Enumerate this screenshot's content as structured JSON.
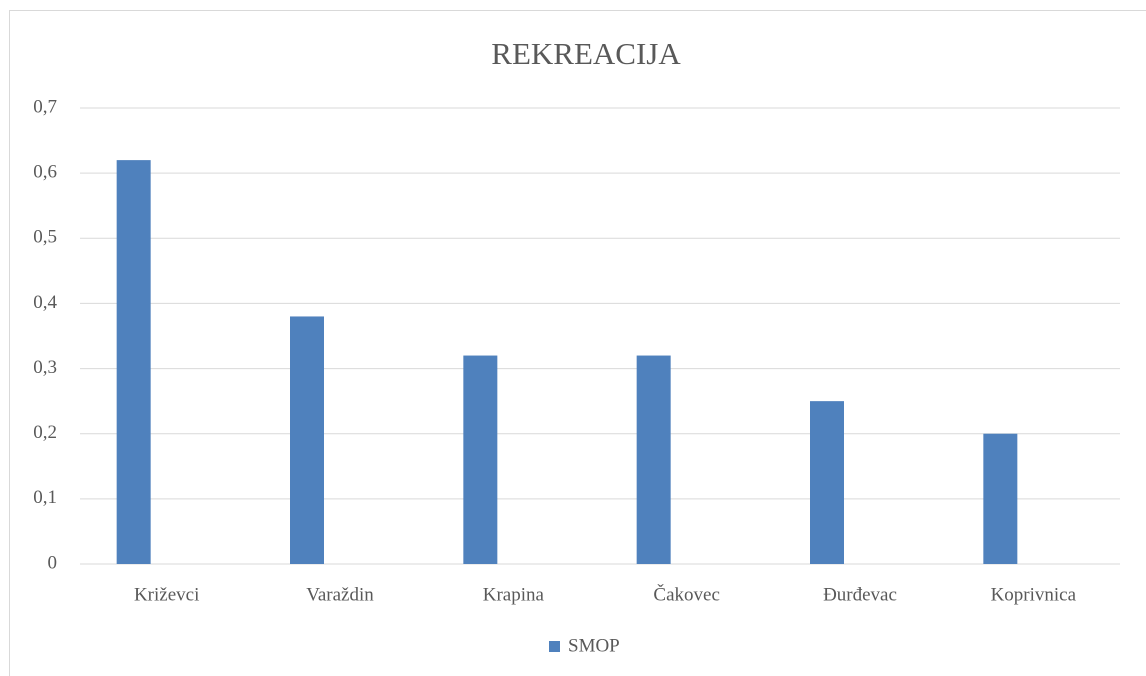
{
  "chart_data": {
    "type": "bar",
    "title": "REKREACIJA",
    "categories": [
      "Križevci",
      "Varaždin",
      "Krapina",
      "Čakovec",
      "Đurđevac",
      "Koprivnica"
    ],
    "series": [
      {
        "name": "SMOP",
        "color": "#4f81bd",
        "values": [
          0.62,
          0.38,
          0.32,
          0.32,
          0.25,
          0.2
        ]
      }
    ],
    "ylim": [
      0,
      0.7
    ],
    "yticks": [
      0,
      {
        "value": 0.1,
        "label": "0,1"
      },
      {
        "value": 0.2,
        "label": "0,2"
      },
      {
        "value": 0.3,
        "label": "0,3"
      },
      {
        "value": 0.4,
        "label": "0,4"
      },
      {
        "value": 0.5,
        "label": "0,5"
      },
      {
        "value": 0.6,
        "label": "0,6"
      },
      {
        "value": 0.7,
        "label": "0,7"
      }
    ],
    "grid": true,
    "legend": "bottom"
  }
}
